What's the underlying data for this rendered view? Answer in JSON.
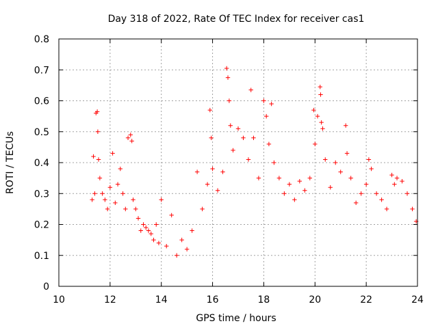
{
  "chart_data": {
    "type": "scatter",
    "title": "Day 318 of 2022, Rate Of TEC Index for receiver cas1",
    "xlabel": "GPS time / hours",
    "ylabel": "ROTI / TECUs",
    "xlim": [
      10,
      24
    ],
    "ylim": [
      0,
      0.8
    ],
    "x_ticks": [
      "10",
      "12",
      "14",
      "16",
      "18",
      "20",
      "22",
      "24"
    ],
    "y_ticks": [
      "0",
      "0.1",
      "0.2",
      "0.3",
      "0.4",
      "0.5",
      "0.6",
      "0.7",
      "0.8"
    ],
    "grid": true,
    "marker": "plus",
    "color": "#ff0000",
    "series": [
      {
        "x": [
          11.3,
          11.35,
          11.4,
          11.45,
          11.5,
          11.52,
          11.55,
          11.6,
          11.7,
          11.8,
          11.9,
          12.0,
          12.1,
          12.2,
          12.3,
          12.4,
          12.5,
          12.6,
          12.7,
          12.8,
          12.85,
          12.9,
          13.0,
          13.1,
          13.2,
          13.3,
          13.4,
          13.5,
          13.6,
          13.7,
          13.8,
          13.9,
          14.0,
          14.2,
          14.4,
          14.6,
          14.8,
          15.0,
          15.2,
          15.4,
          15.6,
          15.8,
          15.9,
          15.95,
          16.0,
          16.2,
          16.4,
          16.55,
          16.6,
          16.65,
          16.7,
          16.8,
          17.0,
          17.2,
          17.4,
          17.5,
          17.6,
          17.8,
          18.0,
          18.1,
          18.2,
          18.3,
          18.4,
          18.6,
          18.8,
          19.0,
          19.2,
          19.4,
          19.6,
          19.8,
          19.95,
          20.0,
          20.1,
          20.2,
          20.22,
          20.25,
          20.3,
          20.4,
          20.6,
          20.8,
          21.0,
          21.2,
          21.25,
          21.4,
          21.6,
          21.8,
          22.0,
          22.1,
          22.2,
          22.4,
          22.6,
          22.8,
          23.0,
          23.1,
          23.2,
          23.4,
          23.6,
          23.8,
          23.95
        ],
        "y": [
          0.28,
          0.42,
          0.3,
          0.56,
          0.565,
          0.5,
          0.41,
          0.35,
          0.3,
          0.28,
          0.25,
          0.32,
          0.43,
          0.27,
          0.33,
          0.38,
          0.3,
          0.25,
          0.48,
          0.49,
          0.47,
          0.28,
          0.25,
          0.22,
          0.18,
          0.2,
          0.19,
          0.18,
          0.17,
          0.15,
          0.2,
          0.14,
          0.28,
          0.13,
          0.23,
          0.1,
          0.15,
          0.12,
          0.18,
          0.37,
          0.25,
          0.33,
          0.57,
          0.48,
          0.38,
          0.31,
          0.37,
          0.705,
          0.675,
          0.6,
          0.52,
          0.44,
          0.51,
          0.48,
          0.41,
          0.635,
          0.48,
          0.35,
          0.6,
          0.55,
          0.46,
          0.59,
          0.4,
          0.35,
          0.3,
          0.33,
          0.28,
          0.34,
          0.31,
          0.35,
          0.57,
          0.46,
          0.55,
          0.645,
          0.62,
          0.53,
          0.51,
          0.41,
          0.32,
          0.4,
          0.37,
          0.52,
          0.43,
          0.35,
          0.27,
          0.3,
          0.33,
          0.41,
          0.38,
          0.3,
          0.28,
          0.25,
          0.36,
          0.33,
          0.35,
          0.34,
          0.3,
          0.25,
          0.21
        ]
      }
    ]
  }
}
